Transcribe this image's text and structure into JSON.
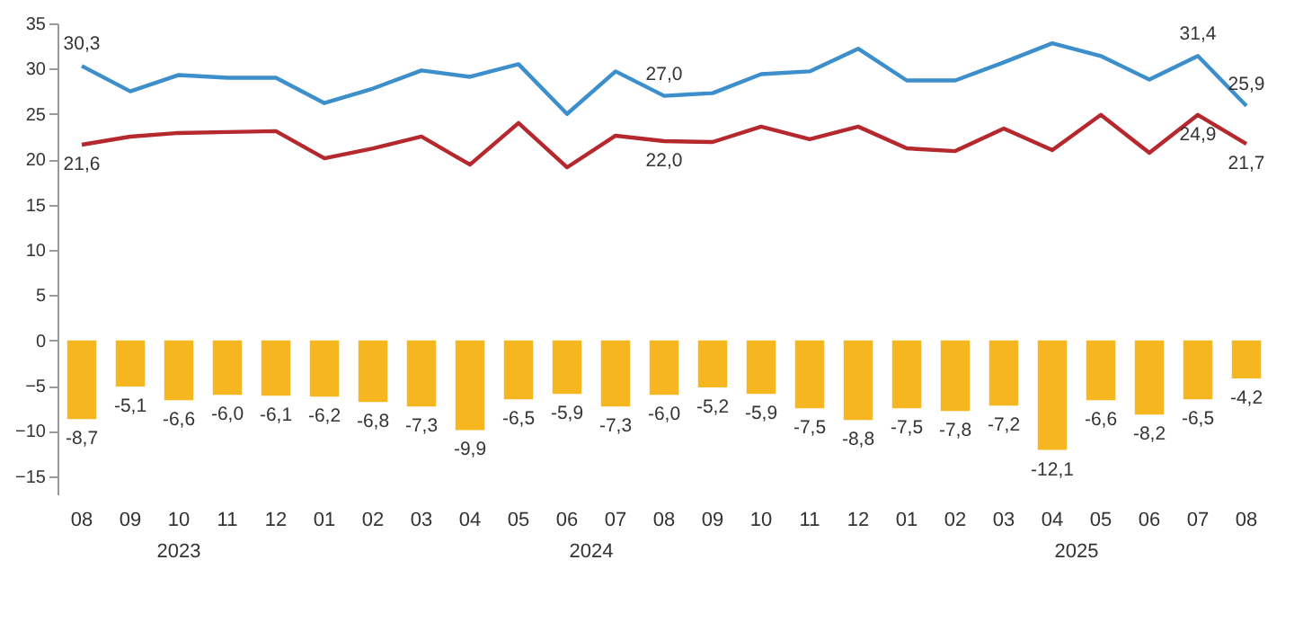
{
  "chart_data": {
    "type": "bar",
    "categories": [
      "08",
      "09",
      "10",
      "11",
      "12",
      "01",
      "02",
      "03",
      "04",
      "05",
      "06",
      "07",
      "08",
      "09",
      "10",
      "11",
      "12",
      "01",
      "02",
      "03",
      "04",
      "05",
      "06",
      "07",
      "08"
    ],
    "series": [
      {
        "type": "line",
        "color": "#3d8fcc",
        "values": [
          30.3,
          27.5,
          29.3,
          29.0,
          29.0,
          26.2,
          27.8,
          29.8,
          29.1,
          30.5,
          25.0,
          29.7,
          27.0,
          27.3,
          29.4,
          29.7,
          32.2,
          28.7,
          28.7,
          30.7,
          32.8,
          31.4,
          28.8,
          31.4,
          25.9
        ],
        "value_labels": [
          "30,3",
          null,
          null,
          null,
          null,
          null,
          null,
          null,
          null,
          null,
          null,
          null,
          "27,0",
          null,
          null,
          null,
          null,
          null,
          null,
          null,
          null,
          null,
          null,
          "31,4",
          "25,9"
        ]
      },
      {
        "type": "line",
        "color": "#b5282e",
        "values": [
          21.6,
          22.5,
          22.9,
          23.0,
          23.1,
          20.1,
          21.2,
          22.5,
          19.4,
          24.0,
          19.1,
          22.6,
          22.0,
          21.9,
          23.6,
          22.2,
          23.6,
          21.2,
          20.9,
          23.4,
          21.0,
          24.9,
          20.7,
          24.9,
          21.7
        ],
        "value_labels": [
          "21,6",
          null,
          null,
          null,
          null,
          null,
          null,
          null,
          null,
          null,
          null,
          null,
          "22,0",
          null,
          null,
          null,
          null,
          null,
          null,
          null,
          null,
          null,
          null,
          "24,9",
          "21,7"
        ]
      },
      {
        "color": "#f6b620",
        "values": [
          -8.7,
          -5.1,
          -6.6,
          -6.0,
          -6.1,
          -6.2,
          -6.8,
          -7.3,
          -9.9,
          -6.5,
          -5.9,
          -7.3,
          -6.0,
          -5.2,
          -5.9,
          -7.5,
          -8.8,
          -7.5,
          -7.8,
          -7.2,
          -12.1,
          -6.6,
          -8.2,
          -6.5,
          -4.2
        ],
        "value_labels": [
          "-8,7",
          "-5,1",
          "-6,6",
          "-6,0",
          "-6,1",
          "-6,2",
          "-6,8",
          "-7,3",
          "-9,9",
          "-6,5",
          "-5,9",
          "-7,3",
          "-6,0",
          "-5,2",
          "-5,9",
          "-7,5",
          "-8,8",
          "-7,5",
          "-7,8",
          "-7,2",
          "-12,1",
          "-6,6",
          "-8,2",
          "-6,5",
          "-4,2"
        ]
      }
    ],
    "annotations": [
      "2023",
      "2024",
      "2025"
    ],
    "ylim": [
      -17,
      35
    ],
    "yticks": [
      -15,
      -10,
      -5,
      0,
      5,
      10,
      15,
      20,
      25,
      30,
      35
    ],
    "grid": false
  }
}
